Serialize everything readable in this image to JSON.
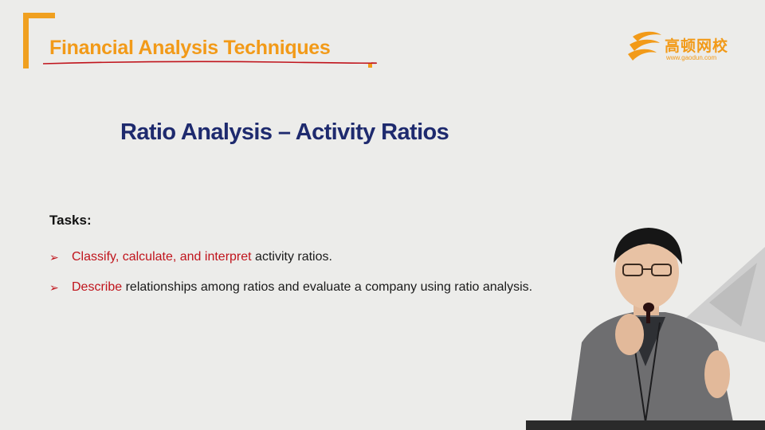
{
  "header": {
    "title": "Financial Analysis Techniques"
  },
  "logo": {
    "brand_cn": "高顿网校",
    "url": "www.gaodun.com",
    "icon": "gaodun-logo-icon"
  },
  "slide": {
    "subtitle": "Ratio Analysis – Activity Ratios",
    "tasks_heading": "Tasks:",
    "tasks": [
      {
        "bullet": "➢",
        "highlight": "Classify, calculate, and interpret",
        "rest": " activity ratios."
      },
      {
        "bullet": "➢",
        "highlight": "Describe",
        "rest": " relationships among ratios and evaluate a company using ratio analysis."
      }
    ]
  },
  "colors": {
    "accent_orange": "#f29a18",
    "title_navy": "#1e2a6e",
    "highlight_red": "#c0141c",
    "background": "#ececea"
  },
  "presenter": {
    "icon": "presenter-person-icon"
  }
}
